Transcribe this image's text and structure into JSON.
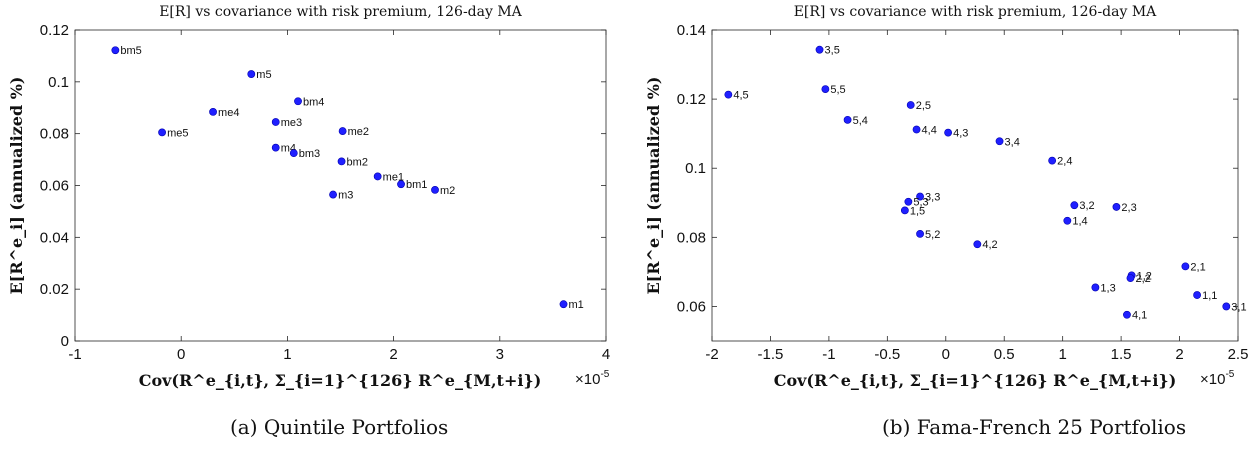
{
  "chart_data": [
    {
      "type": "scatter",
      "title": "E[R] vs covariance with risk premium, 126-day MA",
      "xlabel": "Cov(R^e_{i,t}, Σ_{i=1}^{126} R^e_{M,t+i})",
      "ylabel": "E[R^e_i] (annualized %)",
      "x_multiplier": "×10",
      "x_multiplier_exp": "-5",
      "xlim": [
        -1,
        4
      ],
      "ylim": [
        0,
        0.12
      ],
      "xticks": [
        "-1",
        "0",
        "1",
        "2",
        "3",
        "4"
      ],
      "yticks": [
        "0",
        "0.02",
        "0.04",
        "0.06",
        "0.08",
        "0.1",
        "0.12"
      ],
      "marker_color": "#1f1fff",
      "grid": false,
      "caption": "(a) Quintile Portfolios",
      "points": [
        {
          "label": "bm5",
          "x": -0.62,
          "y": 0.1122
        },
        {
          "label": "m5",
          "x": 0.66,
          "y": 0.103
        },
        {
          "label": "bm4",
          "x": 1.1,
          "y": 0.0925
        },
        {
          "label": "me4",
          "x": 0.3,
          "y": 0.0884
        },
        {
          "label": "me3",
          "x": 0.89,
          "y": 0.0845
        },
        {
          "label": "me2",
          "x": 1.52,
          "y": 0.081
        },
        {
          "label": "me5",
          "x": -0.18,
          "y": 0.0805
        },
        {
          "label": "m4",
          "x": 0.89,
          "y": 0.0746
        },
        {
          "label": "bm3",
          "x": 1.06,
          "y": 0.0725
        },
        {
          "label": "bm2",
          "x": 1.51,
          "y": 0.0693
        },
        {
          "label": "me1",
          "x": 1.85,
          "y": 0.0635
        },
        {
          "label": "bm1",
          "x": 2.07,
          "y": 0.0605
        },
        {
          "label": "m2",
          "x": 2.39,
          "y": 0.0583
        },
        {
          "label": "m3",
          "x": 1.43,
          "y": 0.0565
        },
        {
          "label": "m1",
          "x": 3.6,
          "y": 0.0142
        }
      ]
    },
    {
      "type": "scatter",
      "title": "E[R] vs covariance with risk premium, 126-day MA",
      "xlabel": "Cov(R^e_{i,t}, Σ_{i=1}^{126} R^e_{M,t+i})",
      "ylabel": "E[R^e_i] (annualized %)",
      "x_multiplier": "×10",
      "x_multiplier_exp": "-5",
      "xlim": [
        -2,
        2.5
      ],
      "ylim": [
        0.05,
        0.14
      ],
      "xticks": [
        "-2",
        "-1.5",
        "-1",
        "-0.5",
        "0",
        "0.5",
        "1",
        "1.5",
        "2",
        "2.5"
      ],
      "yticks": [
        "0.06",
        "0.08",
        "0.1",
        "0.12",
        "0.14"
      ],
      "marker_color": "#1f1fff",
      "grid": false,
      "caption": "(b) Fama-French 25 Portfolios",
      "points": [
        {
          "label": "3,5",
          "x": -1.08,
          "y": 0.1343
        },
        {
          "label": "4,5",
          "x": -1.86,
          "y": 0.1213
        },
        {
          "label": "5,5",
          "x": -1.03,
          "y": 0.1229
        },
        {
          "label": "2,5",
          "x": -0.3,
          "y": 0.1183
        },
        {
          "label": "5,4",
          "x": -0.84,
          "y": 0.114
        },
        {
          "label": "4,4",
          "x": -0.25,
          "y": 0.1112
        },
        {
          "label": "4,3",
          "x": 0.02,
          "y": 0.1103
        },
        {
          "label": "3,4",
          "x": 0.46,
          "y": 0.1078
        },
        {
          "label": "2,4",
          "x": 0.91,
          "y": 0.1022
        },
        {
          "label": "3,3",
          "x": -0.22,
          "y": 0.0918
        },
        {
          "label": "5,3",
          "x": -0.32,
          "y": 0.0903
        },
        {
          "label": "3,2",
          "x": 1.1,
          "y": 0.0893
        },
        {
          "label": "2,3",
          "x": 1.46,
          "y": 0.0888
        },
        {
          "label": "1,5",
          "x": -0.35,
          "y": 0.0878
        },
        {
          "label": "1,4",
          "x": 1.04,
          "y": 0.0848
        },
        {
          "label": "5,2",
          "x": -0.22,
          "y": 0.081
        },
        {
          "label": "4,2",
          "x": 0.27,
          "y": 0.078
        },
        {
          "label": "2,1",
          "x": 2.05,
          "y": 0.0716
        },
        {
          "label": "1,2",
          "x": 1.59,
          "y": 0.069
        },
        {
          "label": "2,2",
          "x": 1.58,
          "y": 0.0682
        },
        {
          "label": "1,3",
          "x": 1.28,
          "y": 0.0655
        },
        {
          "label": "1,1",
          "x": 2.15,
          "y": 0.0633
        },
        {
          "label": "3,1",
          "x": 2.4,
          "y": 0.06
        },
        {
          "label": "4,1",
          "x": 1.55,
          "y": 0.0576
        }
      ]
    }
  ]
}
